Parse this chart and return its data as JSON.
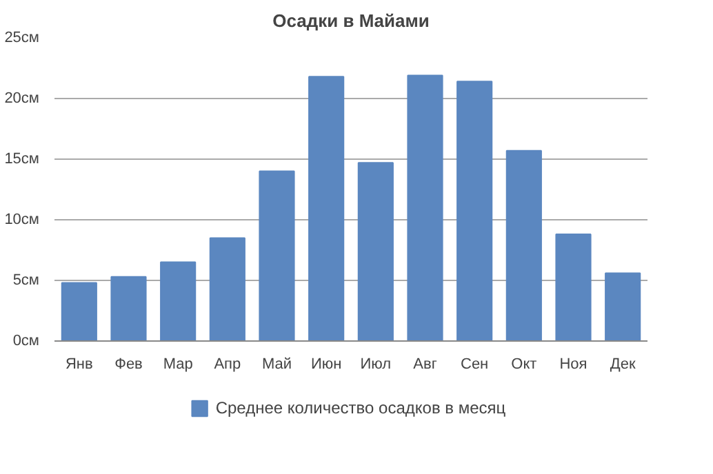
{
  "chart_data": {
    "type": "bar",
    "title": "Осадки в Майами",
    "categories": [
      "Янв",
      "Фев",
      "Мар",
      "Апр",
      "Май",
      "Июн",
      "Июл",
      "Авг",
      "Сен",
      "Окт",
      "Ноя",
      "Дек"
    ],
    "series": [
      {
        "name": "Среднее количество осадков в месяц",
        "color": "#5b87c0",
        "values": [
          4.8,
          5.3,
          6.5,
          8.5,
          14.0,
          21.8,
          14.7,
          21.9,
          21.4,
          15.7,
          8.8,
          5.6
        ]
      }
    ],
    "ylim": [
      0,
      25
    ],
    "yticks": [
      {
        "value": 0,
        "label": "0см"
      },
      {
        "value": 5,
        "label": "5см"
      },
      {
        "value": 10,
        "label": "10см"
      },
      {
        "value": 15,
        "label": "15см"
      },
      {
        "value": 20,
        "label": "20см"
      },
      {
        "value": 25,
        "label": "25см"
      }
    ],
    "grid": "y",
    "legend": "bottom"
  }
}
